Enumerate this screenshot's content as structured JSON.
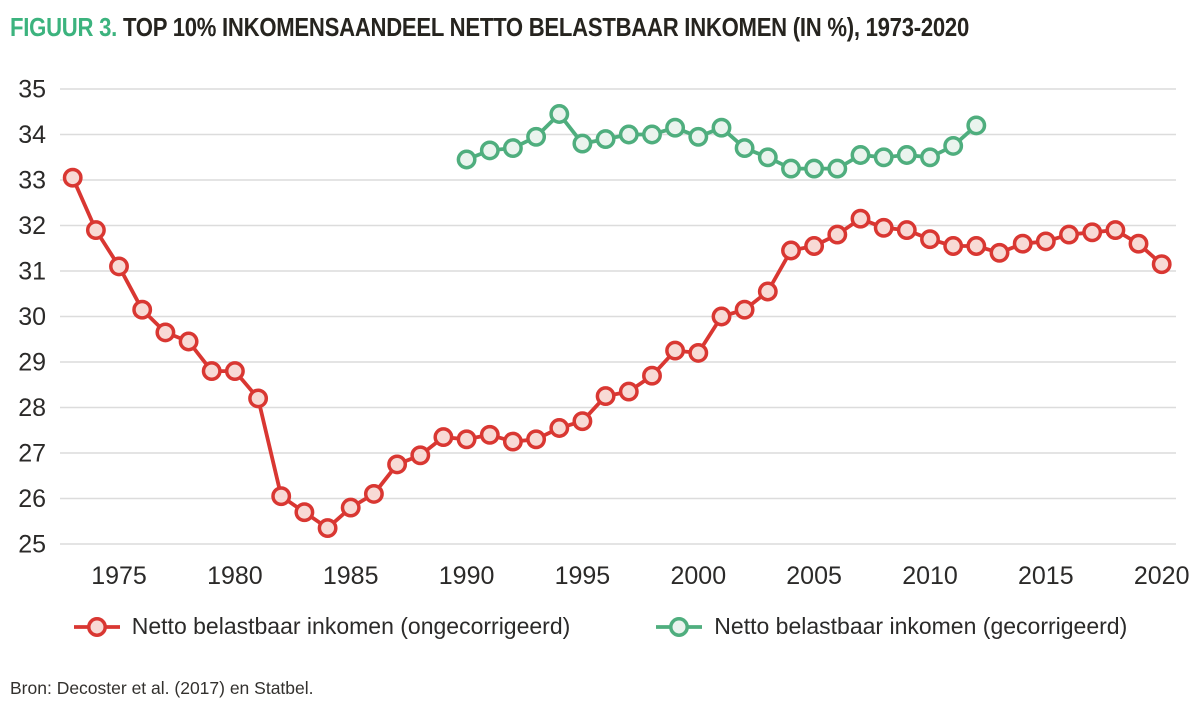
{
  "figure": {
    "title_prefix": "FIGUUR 3.",
    "title": "TOP 10% INKOMENSAANDEEL NETTO BELASTBAAR INKOMEN (IN %), 1973-2020",
    "source": "Bron: Decoster et al. (2017) en Statbel."
  },
  "colors": {
    "title_prefix": "#3cb37e",
    "title_text": "#26241f",
    "grid": "#dcdcdc",
    "axis_text": "#2b2a29"
  },
  "chart_data": {
    "type": "line",
    "title": "TOP 10% INKOMENSAANDEEL NETTO BELASTBAAR INKOMEN (IN %), 1973-2020",
    "xlabel": "",
    "ylabel": "",
    "unit": "%",
    "ylim": [
      25,
      35
    ],
    "yticks": [
      25,
      26,
      27,
      28,
      29,
      30,
      31,
      32,
      33,
      34,
      35
    ],
    "xlim": [
      1973,
      2020
    ],
    "xticks": [
      1975,
      1980,
      1985,
      1990,
      1995,
      2000,
      2005,
      2010,
      2015,
      2020
    ],
    "grid": "horizontal",
    "legend_position": "bottom",
    "series": [
      {
        "name": "Netto belastbaar inkomen (ongecorrigeerd)",
        "color": "#d93732",
        "marker_fill": "#f8dad5",
        "x": [
          1973,
          1974,
          1975,
          1976,
          1977,
          1978,
          1979,
          1980,
          1981,
          1982,
          1983,
          1984,
          1985,
          1986,
          1987,
          1988,
          1989,
          1990,
          1991,
          1992,
          1993,
          1994,
          1995,
          1996,
          1997,
          1998,
          1999,
          2000,
          2001,
          2002,
          2003,
          2004,
          2005,
          2006,
          2007,
          2008,
          2009,
          2010,
          2011,
          2012,
          2013,
          2014,
          2015,
          2016,
          2017,
          2018,
          2019,
          2020
        ],
        "values": [
          33.05,
          31.9,
          31.1,
          30.15,
          29.65,
          29.45,
          28.8,
          28.8,
          28.2,
          26.05,
          25.7,
          25.35,
          25.8,
          26.1,
          26.75,
          26.95,
          27.35,
          27.3,
          27.4,
          27.25,
          27.3,
          27.55,
          27.7,
          28.25,
          28.35,
          28.7,
          29.25,
          29.2,
          30.0,
          30.15,
          30.55,
          31.45,
          31.55,
          31.8,
          32.15,
          31.95,
          31.9,
          31.7,
          31.55,
          31.55,
          31.4,
          31.6,
          31.65,
          31.8,
          31.85,
          31.9,
          31.6,
          31.15
        ]
      },
      {
        "name": "Netto belastbaar inkomen (gecorrigeerd)",
        "color": "#4fae7e",
        "marker_fill": "#eaf4ee",
        "x": [
          1990,
          1991,
          1992,
          1993,
          1994,
          1995,
          1996,
          1997,
          1998,
          1999,
          2000,
          2001,
          2002,
          2003,
          2004,
          2005,
          2006,
          2007,
          2008,
          2009,
          2010,
          2011,
          2012
        ],
        "values": [
          33.45,
          33.65,
          33.7,
          33.95,
          34.45,
          33.8,
          33.9,
          34.0,
          34.0,
          34.15,
          33.95,
          34.15,
          33.7,
          33.5,
          33.25,
          33.25,
          33.25,
          33.55,
          33.5,
          33.55,
          33.5,
          33.75,
          34.2
        ]
      }
    ]
  }
}
